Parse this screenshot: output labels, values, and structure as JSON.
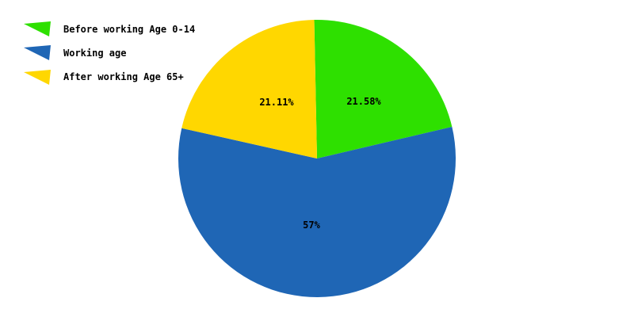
{
  "chart_data": {
    "type": "pie",
    "title": "",
    "legend_position": "top-left",
    "slices": [
      {
        "label": "Before working Age 0-14",
        "value": 21.58,
        "display": "21.58%",
        "color": "#2ee000"
      },
      {
        "label": "Working age",
        "value": 57,
        "display": "57%",
        "color": "#1f66b5"
      },
      {
        "label": "After working Age 65+",
        "value": 21.11,
        "display": "21.11%",
        "color": "#ffd700"
      }
    ]
  }
}
